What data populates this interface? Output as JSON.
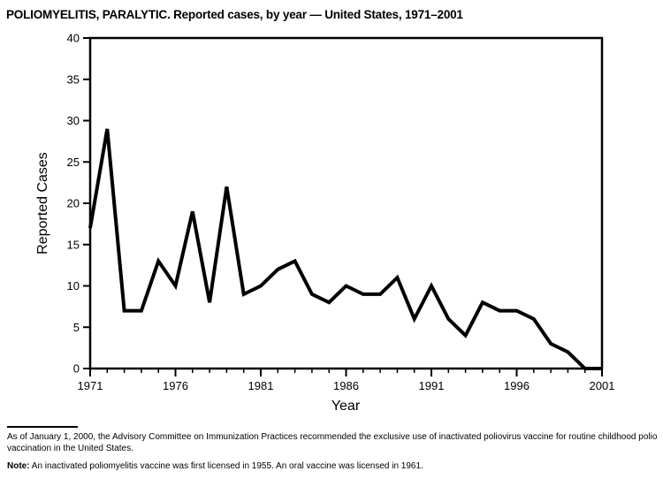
{
  "title": "POLIOMYELITIS, PARALYTIC. Reported cases, by year — United States, 1971–2001",
  "chart_data": {
    "type": "line",
    "title": "POLIOMYELITIS, PARALYTIC. Reported cases, by year — United States, 1971–2001",
    "xlabel": "Year",
    "ylabel": "Reported Cases",
    "x": [
      1971,
      1972,
      1973,
      1974,
      1975,
      1976,
      1977,
      1978,
      1979,
      1980,
      1981,
      1982,
      1983,
      1984,
      1985,
      1986,
      1987,
      1988,
      1989,
      1990,
      1991,
      1992,
      1993,
      1994,
      1995,
      1996,
      1997,
      1998,
      1999,
      2000,
      2001
    ],
    "values": [
      17,
      29,
      7,
      7,
      13,
      10,
      19,
      8,
      22,
      9,
      10,
      12,
      13,
      9,
      8,
      10,
      9,
      9,
      11,
      6,
      10,
      6,
      4,
      8,
      7,
      7,
      6,
      3,
      2,
      0,
      0
    ],
    "ylim": [
      0,
      40
    ],
    "ytick_interval": 5,
    "xtick_labeled": [
      1971,
      1976,
      1981,
      1986,
      1991,
      1996,
      2001
    ],
    "grid": "off",
    "legend": "none",
    "line_color": "#000000",
    "axis_color": "#000000",
    "line_width": 4
  },
  "footnote": {
    "line1": "As of January 1, 2000, the Advisory Committee on Immunization Practices recommended the exclusive use of inactivated poliovirus vaccine for routine childhood polio vaccination in the United States.",
    "note_label": "Note:",
    "note_text": " An inactivated poliomyelitis vaccine was first licensed in 1955. An oral vaccine was licensed in 1961."
  }
}
